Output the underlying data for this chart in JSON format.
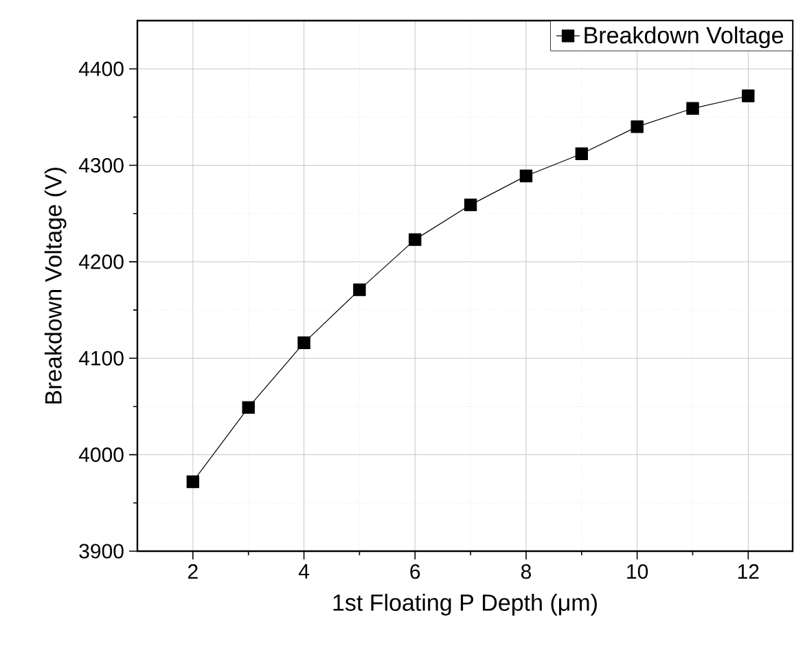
{
  "chart_data": {
    "type": "line",
    "xlabel": "1st Floating P Depth (μm)",
    "ylabel": "Breakdown Voltage (V)",
    "x": [
      2,
      3,
      4,
      5,
      6,
      7,
      8,
      9,
      10,
      11,
      12
    ],
    "series": [
      {
        "name": "Breakdown Voltage",
        "color": "#000000",
        "values": [
          3972,
          4049,
          4116,
          4171,
          4223,
          4259,
          4289,
          4312,
          4340,
          4359,
          4372
        ]
      }
    ],
    "xlim": [
      1,
      12.8
    ],
    "ylim": [
      3900,
      4450
    ],
    "xticks": [
      2,
      4,
      6,
      8,
      10,
      12
    ],
    "yticks": [
      3900,
      4000,
      4100,
      4200,
      4300,
      4400
    ],
    "grid": true,
    "legend": "top right",
    "marker": "square",
    "line_style": "solid"
  }
}
